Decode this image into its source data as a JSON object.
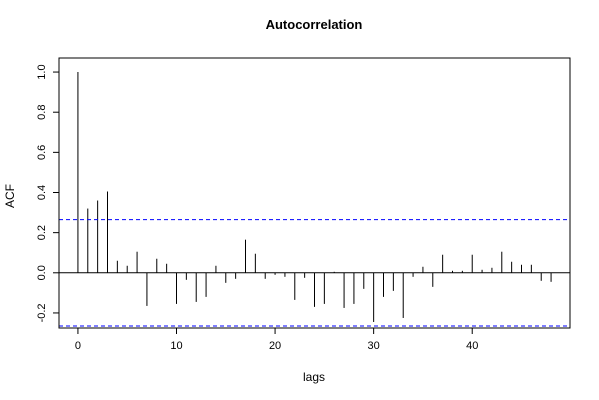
{
  "chart_data": {
    "type": "bar",
    "title": "Autocorrelation",
    "xlabel": "lags",
    "ylabel": "ACF",
    "xlim": [
      -1.92,
      49.92
    ],
    "ylim": [
      -0.275,
      1.07
    ],
    "xticks": [
      0,
      10,
      20,
      30,
      40
    ],
    "xtick_labels": [
      "0",
      "10",
      "20",
      "30",
      "40"
    ],
    "yticks": [
      -0.2,
      0.0,
      0.2,
      0.4,
      0.6,
      0.8,
      1.0
    ],
    "ytick_labels": [
      "-0.2",
      "0.0",
      "0.2",
      "0.4",
      "0.6",
      "0.8",
      "1.0"
    ],
    "confidence_bound": 0.265,
    "confidence_color": "#0000ff",
    "lags": [
      0,
      1,
      2,
      3,
      4,
      5,
      6,
      7,
      8,
      9,
      10,
      11,
      12,
      13,
      14,
      15,
      16,
      17,
      18,
      19,
      20,
      21,
      22,
      23,
      24,
      25,
      26,
      27,
      28,
      29,
      30,
      31,
      32,
      33,
      34,
      35,
      36,
      37,
      38,
      39,
      40,
      41,
      42,
      43,
      44,
      45,
      46,
      47,
      48
    ],
    "acf": [
      1.0,
      0.32,
      0.36,
      0.405,
      0.06,
      0.035,
      0.105,
      -0.165,
      0.07,
      0.045,
      -0.155,
      -0.035,
      -0.145,
      -0.12,
      0.035,
      -0.05,
      -0.03,
      0.165,
      0.095,
      -0.03,
      -0.01,
      -0.02,
      -0.135,
      -0.025,
      -0.17,
      -0.155,
      0.005,
      -0.175,
      -0.155,
      -0.08,
      -0.245,
      -0.12,
      -0.09,
      -0.225,
      -0.02,
      0.03,
      -0.07,
      0.09,
      0.01,
      0.01,
      0.09,
      0.015,
      0.025,
      0.105,
      0.055,
      0.04,
      0.04,
      -0.04,
      -0.045
    ]
  }
}
